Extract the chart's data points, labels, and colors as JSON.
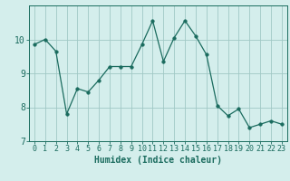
{
  "x": [
    0,
    1,
    2,
    3,
    4,
    5,
    6,
    7,
    8,
    9,
    10,
    11,
    12,
    13,
    14,
    15,
    16,
    17,
    18,
    19,
    20,
    21,
    22,
    23
  ],
  "y": [
    9.85,
    10.0,
    9.65,
    7.8,
    8.55,
    8.45,
    8.8,
    9.2,
    9.2,
    9.2,
    9.85,
    10.55,
    9.35,
    10.05,
    10.55,
    10.1,
    9.55,
    8.05,
    7.75,
    7.95,
    7.4,
    7.5,
    7.6,
    7.5
  ],
  "line_color": "#1a6b5e",
  "marker": "o",
  "marker_size": 2.5,
  "bg_color": "#d4eeec",
  "grid_color": "#a0c8c5",
  "xlabel": "Humidex (Indice chaleur)",
  "ylim": [
    7.0,
    11.0
  ],
  "xlim": [
    -0.5,
    23.5
  ],
  "yticks": [
    7,
    8,
    9,
    10
  ],
  "xticks": [
    0,
    1,
    2,
    3,
    4,
    5,
    6,
    7,
    8,
    9,
    10,
    11,
    12,
    13,
    14,
    15,
    16,
    17,
    18,
    19,
    20,
    21,
    22,
    23
  ],
  "tick_color": "#1a6b5e",
  "label_color": "#1a6b5e",
  "spine_color": "#1a6b5e",
  "tick_fontsize": 6,
  "xlabel_fontsize": 7
}
